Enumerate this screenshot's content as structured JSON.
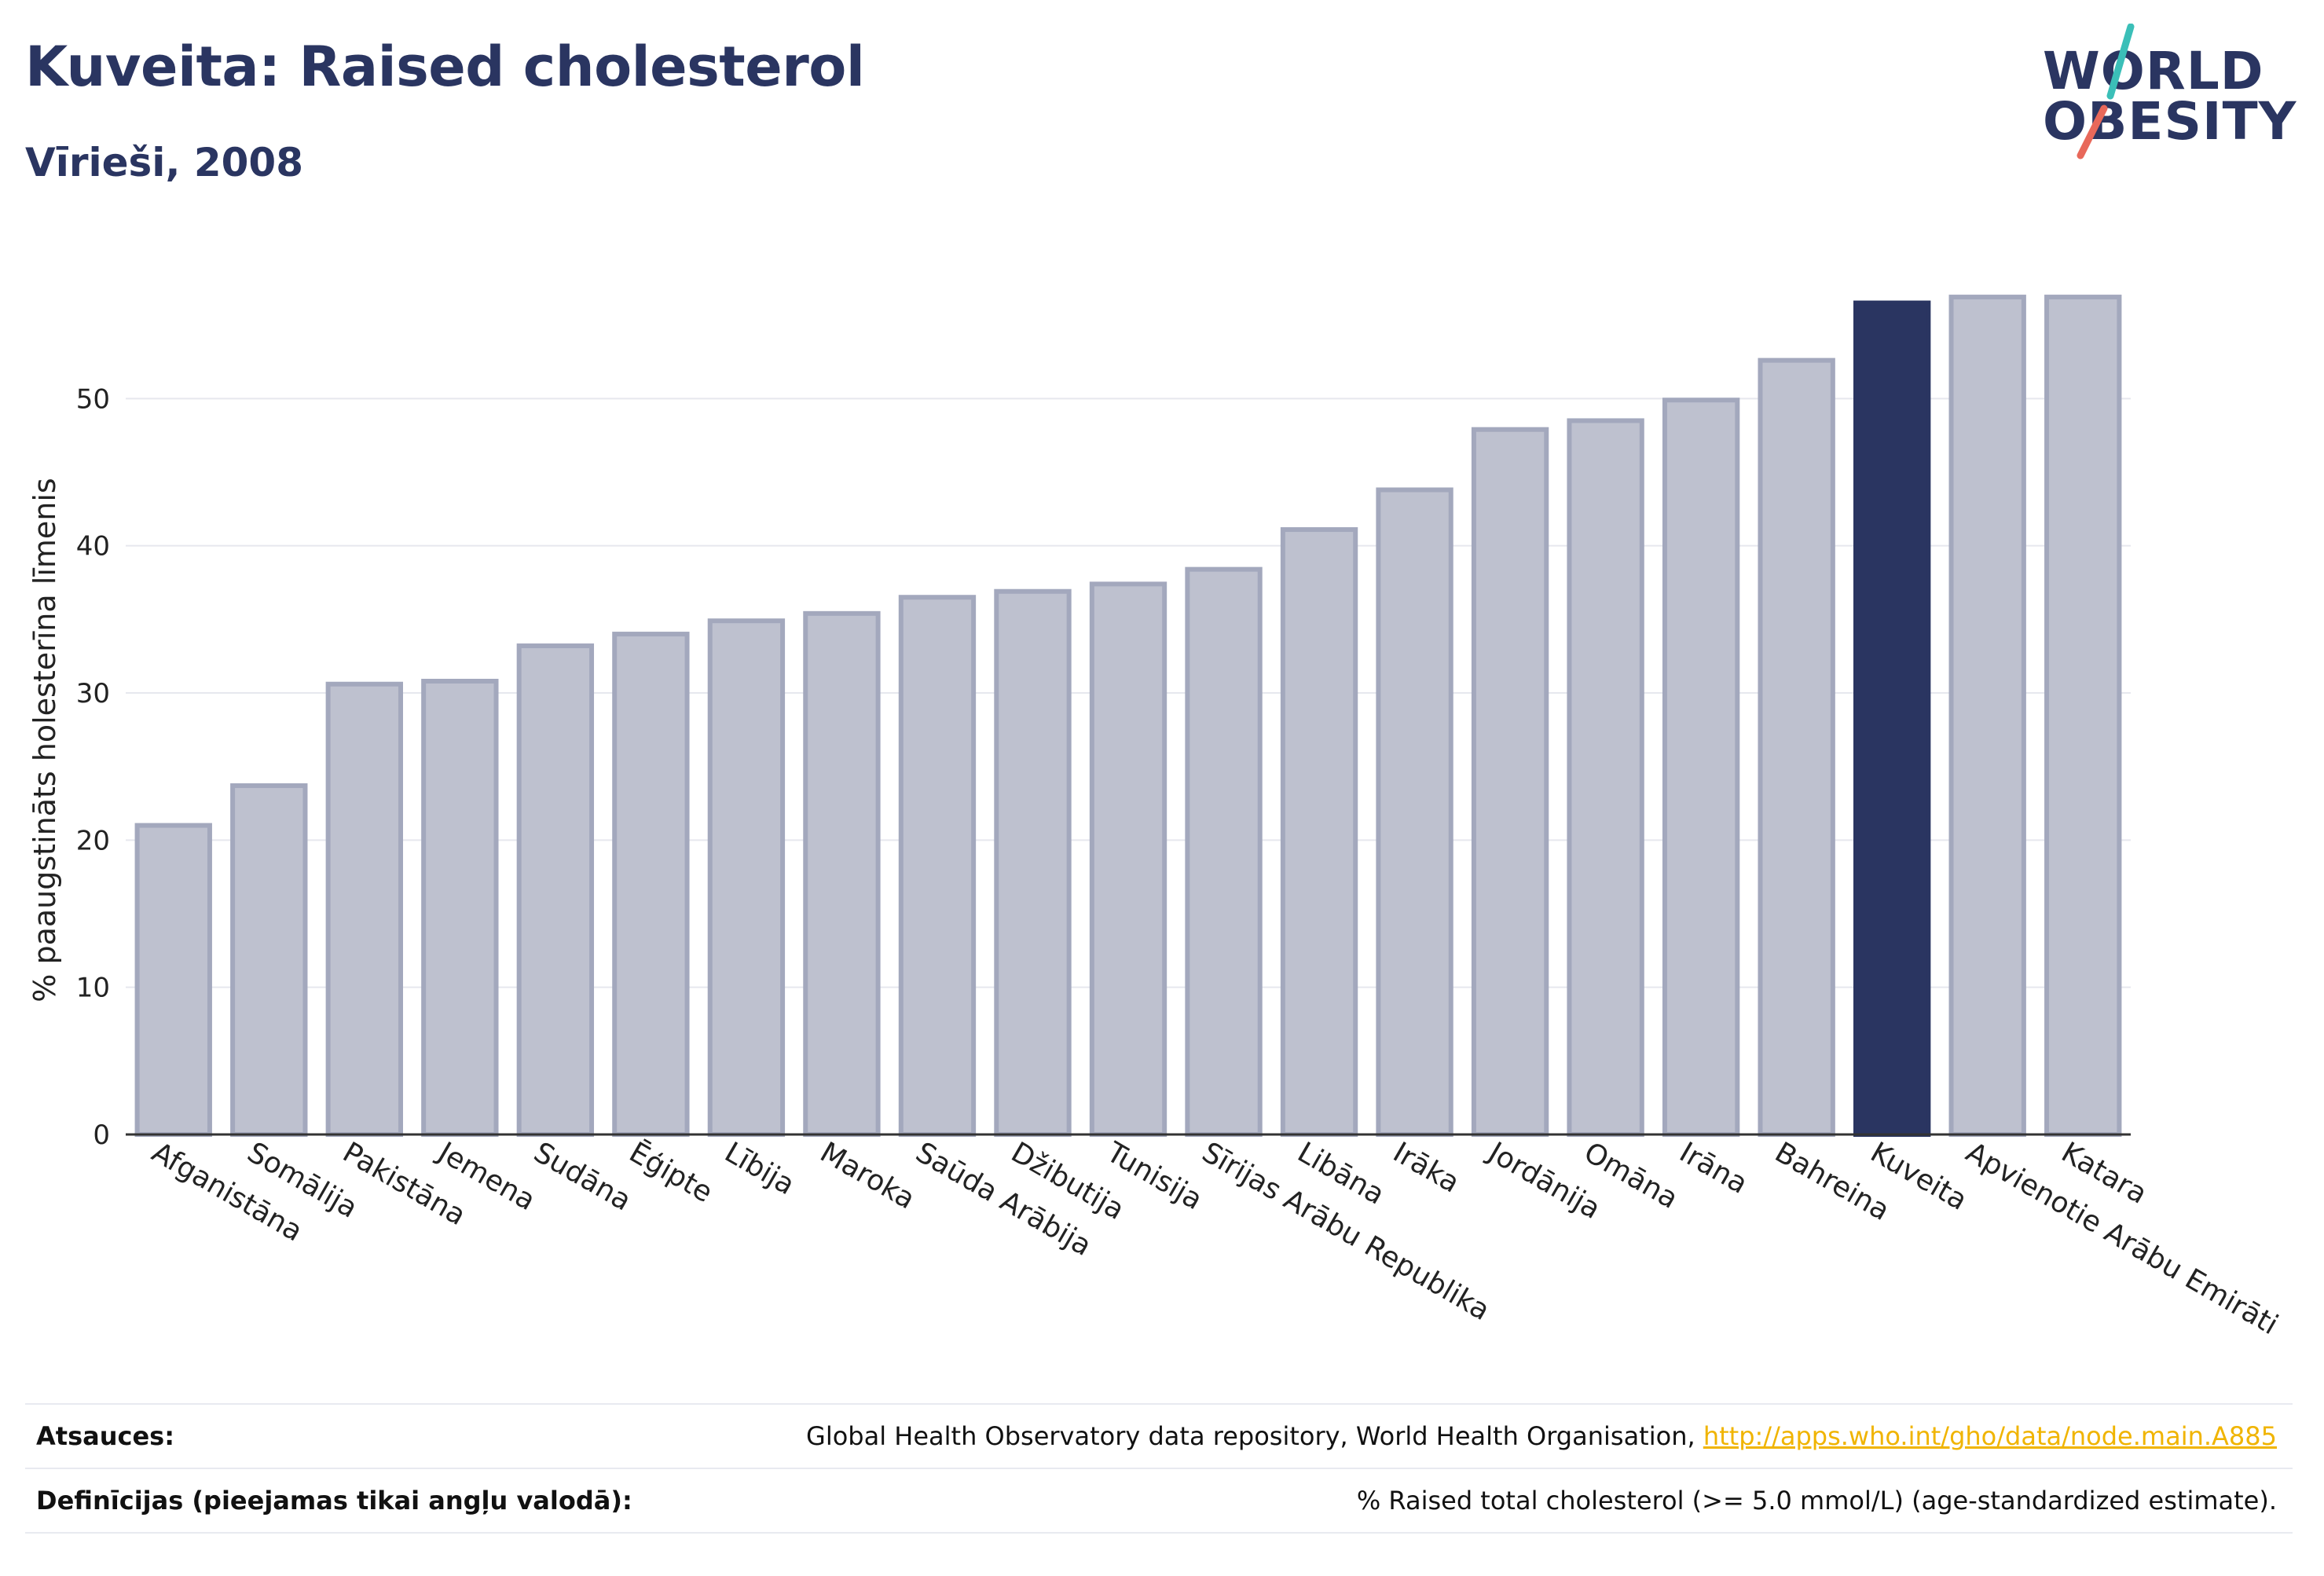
{
  "header": {
    "title": "Kuveita: Raised cholesterol",
    "subtitle": "Vīrieši, 2008"
  },
  "logo": {
    "line1": "WORLD",
    "line2": "OBESITY",
    "accent_colors": [
      "#e8685a",
      "#3bbfb8"
    ]
  },
  "colors": {
    "bar": "#bec1cf",
    "bar_border": "#a3a8bd",
    "highlight": "#2a3561",
    "grid": "#e6e8ee"
  },
  "chart_data": {
    "type": "bar",
    "ylabel": "% paaugstināts holesterīna līmenis",
    "xlabel": "",
    "ylim": [
      0,
      60
    ],
    "yticks": [
      0,
      10,
      20,
      30,
      40,
      50
    ],
    "highlight": "Kuveita",
    "grid": true,
    "categories": [
      "Afganistāna",
      "Somālija",
      "Pakistāna",
      "Jemena",
      "Sudāna",
      "Ēģipte",
      "Lībija",
      "Maroka",
      "Saūda Arābija",
      "Džibutija",
      "Tunisija",
      "Sīrijas Arābu Republika",
      "Libāna",
      "Irāka",
      "Jordānija",
      "Omāna",
      "Irāna",
      "Bahreina",
      "Kuveita",
      "Apvienotie Arābu Emirāti",
      "Katara"
    ],
    "values": [
      21.0,
      23.7,
      30.6,
      30.8,
      33.2,
      34.0,
      34.9,
      35.4,
      36.5,
      36.9,
      37.4,
      38.4,
      41.1,
      43.8,
      47.9,
      48.5,
      49.9,
      52.6,
      56.5,
      56.9,
      56.9
    ]
  },
  "footer": {
    "sources_label": "Atsauces:",
    "sources_text": "Global Health Observatory data repository, World Health Organisation,",
    "sources_link": "http://apps.who.int/gho/data/node.main.A885",
    "definitions_label": "Definīcijas (pieejamas tikai angļu valodā):",
    "definitions_text": "% Raised total cholesterol (>= 5.0 mmol/L) (age-standardized estimate)."
  }
}
